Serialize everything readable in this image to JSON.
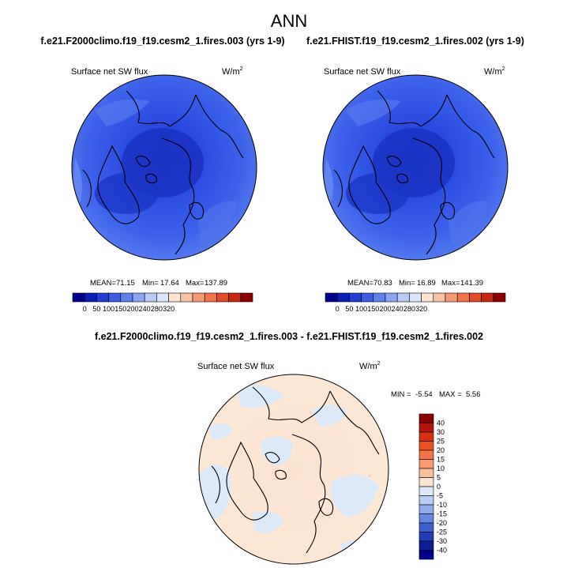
{
  "chart_data": {
    "type": "heatmap",
    "title": "ANN",
    "units_base": "W/m",
    "units_exp": "2",
    "panels": [
      {
        "id": "case1",
        "case_title": "f.e21.F2000climo.f19_f19.cesm2_1.fires.003 (yrs 1-9)",
        "variable": "Surface net SW flux",
        "stats": {
          "mean_label": "MEAN=",
          "mean": "71.15",
          "min_label": "Min=",
          "min": "17.64",
          "max_label": "Max=",
          "max": "137.89"
        },
        "colorbar": {
          "orientation": "horizontal",
          "levels": [
            "0",
            "50",
            "100",
            "150",
            "200",
            "240",
            "280",
            "320"
          ],
          "colors": [
            "#00008b",
            "#0a1fb8",
            "#1f3fd6",
            "#3b5fe0",
            "#5f82ec",
            "#8aa6f2",
            "#b7c9f7",
            "#dde7fb",
            "#fde3d2",
            "#f9c2a3",
            "#f49c74",
            "#ee7549",
            "#e04d26",
            "#c5270f",
            "#8b0000"
          ]
        }
      },
      {
        "id": "case2",
        "case_title": "f.e21.FHIST.f19_f19.cesm2_1.fires.002 (yrs 1-9)",
        "variable": "Surface net SW flux",
        "stats": {
          "mean_label": "MEAN=",
          "mean": "70.83",
          "min_label": "Min=",
          "min": "16.89",
          "max_label": "Max=",
          "max": "141.39"
        },
        "colorbar": {
          "orientation": "horizontal",
          "levels": [
            "0",
            "50",
            "100",
            "150",
            "200",
            "240",
            "280",
            "320"
          ],
          "colors": [
            "#00008b",
            "#0a1fb8",
            "#1f3fd6",
            "#3b5fe0",
            "#5f82ec",
            "#8aa6f2",
            "#b7c9f7",
            "#dde7fb",
            "#fde3d2",
            "#f9c2a3",
            "#f49c74",
            "#ee7549",
            "#e04d26",
            "#c5270f",
            "#8b0000"
          ]
        }
      },
      {
        "id": "diff",
        "case_title": "f.e21.F2000climo.f19_f19.cesm2_1.fires.003 - f.e21.FHIST.f19_f19.cesm2_1.fires.002",
        "variable": "Surface net SW flux",
        "stats": {
          "min_label": "MIN =",
          "min": "-5.54",
          "max_label": "MAX =",
          "max": "5.56"
        },
        "colorbar": {
          "orientation": "vertical",
          "levels": [
            "40",
            "30",
            "25",
            "20",
            "15",
            "10",
            "5",
            "0",
            "-5",
            "-10",
            "-15",
            "-20",
            "-25",
            "-30",
            "-40"
          ],
          "colors": [
            "#8b0000",
            "#b51508",
            "#d6300f",
            "#ec5025",
            "#f57447",
            "#f9996f",
            "#fbbf9c",
            "#fde4cf",
            "#dde9fa",
            "#b9cdf4",
            "#90acec",
            "#6688e0",
            "#3f61d0",
            "#1f3db5",
            "#0c1f96",
            "#00008b"
          ]
        }
      }
    ]
  }
}
